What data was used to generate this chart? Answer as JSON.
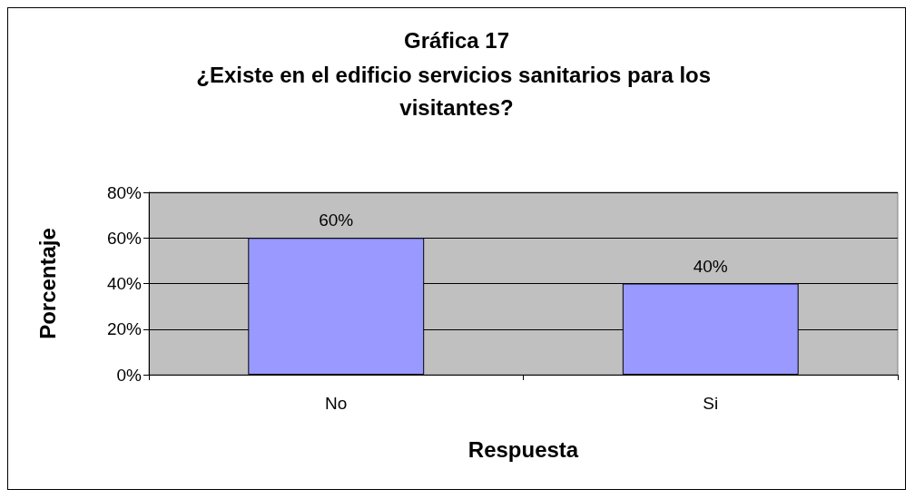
{
  "chart_data": {
    "type": "bar",
    "title": "Gráfica 17",
    "subtitle": "¿Existe en el edificio servicios sanitarios para los visitantes?",
    "xlabel": "Respuesta",
    "ylabel": "Porcentaje",
    "categories": [
      "No",
      "Si"
    ],
    "values": [
      60,
      40
    ],
    "value_labels": [
      "60%",
      "40%"
    ],
    "color": "#9999ff",
    "ylim": [
      0,
      80
    ],
    "yticks": [
      {
        "value": 0,
        "label": "0%"
      },
      {
        "value": 20,
        "label": "20%"
      },
      {
        "value": 40,
        "label": "40%"
      },
      {
        "value": 60,
        "label": "60%"
      },
      {
        "value": 80,
        "label": "80%"
      }
    ],
    "grid": "y"
  }
}
